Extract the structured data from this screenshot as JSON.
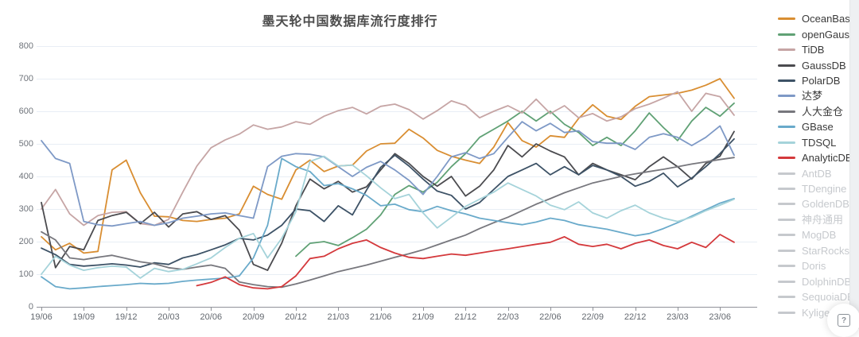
{
  "page": {
    "title": "墨天轮中国数据库流行度排行"
  },
  "help_button": {
    "label": "?"
  },
  "chart_data": {
    "type": "line",
    "title": "墨天轮中国数据库流行度排行",
    "title_color": "#4c4c4c",
    "xlabel": "",
    "ylabel": "",
    "ylim": [
      0,
      800
    ],
    "yticks": [
      0,
      100,
      200,
      300,
      400,
      500,
      600,
      700,
      800
    ],
    "grid": true,
    "grid_color": "#e8eef5",
    "legend_position": "right",
    "disabled_color": "#c6c9cd",
    "x_monthly": [
      "19/06",
      "19/07",
      "19/08",
      "19/09",
      "19/10",
      "19/11",
      "19/12",
      "20/01",
      "20/02",
      "20/03",
      "20/04",
      "20/05",
      "20/06",
      "20/07",
      "20/08",
      "20/09",
      "20/10",
      "20/11",
      "20/12",
      "21/01",
      "21/02",
      "21/03",
      "21/04",
      "21/05",
      "21/06",
      "21/07",
      "21/08",
      "21/09",
      "21/10",
      "21/11",
      "21/12",
      "22/01",
      "22/02",
      "22/03",
      "22/04",
      "22/05",
      "22/06",
      "22/07",
      "22/08",
      "22/09",
      "22/10",
      "22/11",
      "22/12",
      "23/01",
      "23/02",
      "23/03",
      "23/04",
      "23/05",
      "23/06",
      "23/07"
    ],
    "x_tick_labels": [
      "19/06",
      "19/09",
      "19/12",
      "20/03",
      "20/06",
      "20/09",
      "20/12",
      "21/03",
      "21/06",
      "21/09",
      "21/12",
      "22/03",
      "22/06",
      "22/09",
      "22/12",
      "23/03",
      "23/06"
    ],
    "series": [
      {
        "name": "OceanBase",
        "color": "#d98e32",
        "values": [
          215,
          175,
          195,
          165,
          170,
          420,
          450,
          350,
          278,
          276,
          265,
          262,
          268,
          272,
          285,
          370,
          345,
          330,
          420,
          450,
          415,
          432,
          435,
          478,
          500,
          502,
          545,
          518,
          480,
          462,
          450,
          440,
          490,
          565,
          510,
          490,
          525,
          520,
          578,
          620,
          585,
          575,
          615,
          645,
          650,
          655,
          665,
          680,
          700,
          640
        ]
      },
      {
        "name": "openGauss",
        "color": "#60a175",
        "values": [
          null,
          null,
          null,
          null,
          null,
          null,
          null,
          null,
          null,
          null,
          null,
          null,
          null,
          null,
          null,
          null,
          null,
          null,
          155,
          195,
          200,
          188,
          212,
          238,
          282,
          345,
          372,
          352,
          382,
          430,
          470,
          520,
          545,
          570,
          600,
          570,
          600,
          560,
          535,
          495,
          520,
          495,
          540,
          595,
          550,
          510,
          570,
          612,
          585,
          625
        ]
      },
      {
        "name": "TiDB",
        "color": "#c6a5a5",
        "values": [
          300,
          360,
          285,
          250,
          280,
          290,
          292,
          255,
          250,
          268,
          352,
          432,
          488,
          512,
          530,
          558,
          545,
          552,
          568,
          560,
          585,
          602,
          612,
          592,
          615,
          622,
          605,
          576,
          602,
          632,
          618,
          580,
          600,
          617,
          595,
          637,
          593,
          617,
          580,
          593,
          570,
          583,
          608,
          622,
          640,
          660,
          600,
          655,
          645,
          588
        ]
      },
      {
        "name": "GaussDB",
        "color": "#4b4b4f",
        "values": [
          320,
          120,
          185,
          175,
          265,
          280,
          290,
          255,
          290,
          245,
          285,
          292,
          268,
          280,
          235,
          130,
          112,
          195,
          310,
          392,
          362,
          385,
          352,
          368,
          420,
          470,
          440,
          400,
          370,
          400,
          340,
          370,
          420,
          495,
          460,
          500,
          478,
          460,
          405,
          440,
          420,
          405,
          390,
          430,
          460,
          430,
          392,
          440,
          462,
          538
        ]
      },
      {
        "name": "PolarDB",
        "color": "#3d5266",
        "values": [
          180,
          160,
          130,
          125,
          128,
          132,
          128,
          122,
          135,
          130,
          150,
          160,
          175,
          190,
          210,
          205,
          220,
          250,
          300,
          295,
          262,
          310,
          282,
          358,
          428,
          465,
          432,
          392,
          355,
          342,
          300,
          320,
          360,
          400,
          420,
          440,
          405,
          430,
          405,
          434,
          420,
          400,
          370,
          385,
          410,
          368,
          395,
          430,
          470,
          515
        ]
      },
      {
        "name": "达梦",
        "color": "#7e99c6",
        "values": [
          510,
          455,
          440,
          262,
          252,
          248,
          255,
          262,
          250,
          258,
          272,
          278,
          285,
          288,
          280,
          272,
          430,
          462,
          470,
          468,
          460,
          430,
          400,
          428,
          446,
          420,
          388,
          345,
          400,
          460,
          473,
          455,
          470,
          520,
          568,
          540,
          563,
          535,
          540,
          507,
          502,
          502,
          483,
          520,
          531,
          520,
          495,
          520,
          555,
          465
        ]
      },
      {
        "name": "人大金仓",
        "color": "#77777d",
        "values": [
          230,
          205,
          150,
          145,
          152,
          158,
          148,
          138,
          132,
          120,
          115,
          122,
          128,
          118,
          76,
          68,
          62,
          60,
          70,
          82,
          95,
          108,
          118,
          128,
          140,
          152,
          163,
          175,
          190,
          205,
          220,
          240,
          258,
          275,
          295,
          315,
          332,
          350,
          365,
          380,
          390,
          400,
          408,
          415,
          422,
          430,
          438,
          445,
          452,
          458
        ]
      },
      {
        "name": "GBase",
        "color": "#69aaca",
        "values": [
          92,
          62,
          55,
          58,
          62,
          65,
          68,
          72,
          70,
          72,
          78,
          82,
          85,
          88,
          95,
          150,
          250,
          455,
          430,
          415,
          372,
          378,
          362,
          342,
          310,
          315,
          298,
          292,
          308,
          295,
          285,
          272,
          265,
          258,
          252,
          260,
          272,
          265,
          252,
          245,
          238,
          228,
          218,
          225,
          240,
          258,
          278,
          298,
          318,
          332
        ]
      },
      {
        "name": "TDSQL",
        "color": "#a5d3da",
        "values": [
          100,
          155,
          128,
          112,
          120,
          125,
          122,
          88,
          118,
          108,
          115,
          132,
          150,
          182,
          210,
          225,
          150,
          210,
          292,
          446,
          462,
          432,
          435,
          402,
          365,
          332,
          345,
          288,
          242,
          275,
          308,
          330,
          352,
          380,
          360,
          340,
          312,
          298,
          322,
          288,
          272,
          295,
          312,
          288,
          272,
          262,
          275,
          295,
          312,
          330
        ]
      },
      {
        "name": "AnalyticDB",
        "color": "#d4393c",
        "values": [
          null,
          null,
          null,
          null,
          null,
          null,
          null,
          null,
          null,
          null,
          null,
          65,
          75,
          92,
          68,
          58,
          55,
          62,
          95,
          148,
          155,
          178,
          195,
          205,
          182,
          165,
          152,
          148,
          155,
          162,
          158,
          165,
          172,
          178,
          185,
          192,
          198,
          215,
          192,
          185,
          192,
          178,
          195,
          205,
          188,
          178,
          198,
          182,
          222,
          198
        ]
      }
    ],
    "disabled_series": [
      {
        "name": "AntDB"
      },
      {
        "name": "TDengine"
      },
      {
        "name": "GoldenDB"
      },
      {
        "name": "神舟通用"
      },
      {
        "name": "MogDB"
      },
      {
        "name": "StarRocks"
      },
      {
        "name": "Doris"
      },
      {
        "name": "DolphinDB"
      },
      {
        "name": "SequoiaDB"
      },
      {
        "name": "Kyligence"
      }
    ]
  }
}
